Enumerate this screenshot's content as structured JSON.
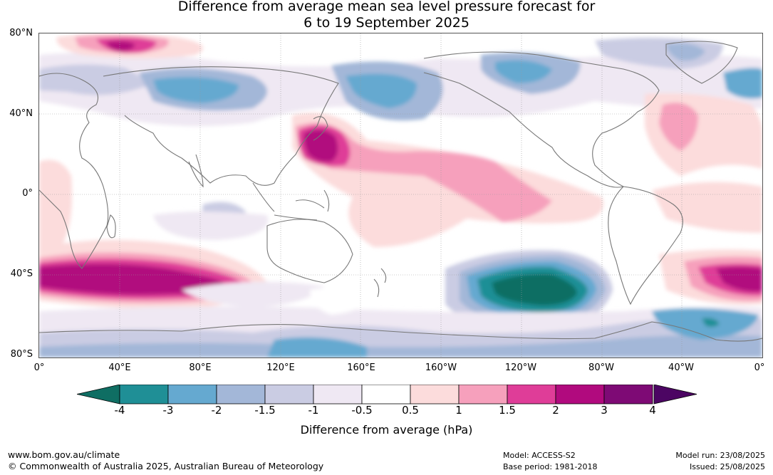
{
  "title_line1": "Difference from average mean sea level pressure forecast for",
  "title_line2": "6 to 19 September 2025",
  "lat_labels": [
    "80°N",
    "40°N",
    "0°",
    "40°S",
    "80°S"
  ],
  "lon_labels": [
    "0°",
    "40°E",
    "80°E",
    "120°E",
    "160°E",
    "160°W",
    "120°W",
    "80°W",
    "40°W",
    "0°"
  ],
  "colorbar": {
    "label": "Difference from average (hPa)",
    "ticks": [
      "-4",
      "-3",
      "-2",
      "-1.5",
      "-1",
      "-0.5",
      "0.5",
      "1",
      "1.5",
      "2",
      "3",
      "4"
    ],
    "colors": [
      "#0f6e63",
      "#1f8f96",
      "#65a9d0",
      "#a3b7d8",
      "#cacce3",
      "#efe8f3",
      "#ffffff",
      "#fcdcdc",
      "#f6a0bc",
      "#df3d98",
      "#b10a7e",
      "#7e0a75",
      "#4c0563"
    ]
  },
  "footer": {
    "url": "www.bom.gov.au/climate",
    "copyright": "© Commonwealth of Australia 2025, Australian Bureau of Meteorology",
    "model": "Model: ACCESS-S2",
    "base_period": "Base period: 1981-2018",
    "model_run": "Model run: 23/08/2025",
    "issued": "Issued: 25/08/2025"
  }
}
